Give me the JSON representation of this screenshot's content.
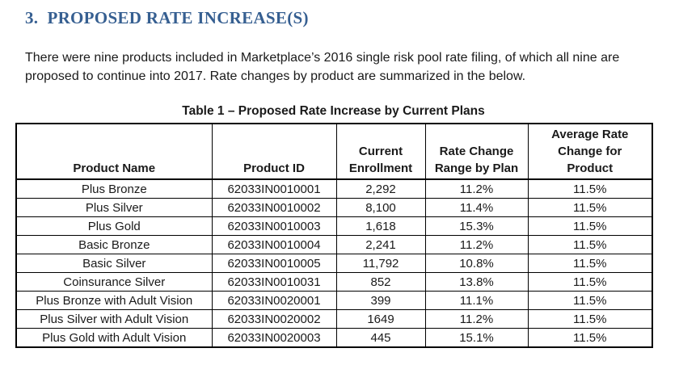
{
  "section": {
    "heading": "3.  PROPOSED RATE INCREASE(S)",
    "intro_lines": [
      "There were nine products included in Marketplace’s 2016 single risk pool rate filing, of which all nine are",
      "proposed to continue into 2017. Rate changes by product are summarized in the below."
    ]
  },
  "table": {
    "title": "Table 1 – Proposed Rate Increase by Current Plans",
    "headers": [
      "Product Name",
      "Product ID",
      "Current\nEnrollment",
      "Rate Change\nRange by Plan",
      "Average Rate\nChange for\nProduct"
    ],
    "rows": [
      [
        "Plus Bronze",
        "62033IN0010001",
        "2,292",
        "11.2%",
        "11.5%"
      ],
      [
        "Plus Silver",
        "62033IN0010002",
        "8,100",
        "11.4%",
        "11.5%"
      ],
      [
        "Plus Gold",
        "62033IN0010003",
        "1,618",
        "15.3%",
        "11.5%"
      ],
      [
        "Basic Bronze",
        "62033IN0010004",
        "2,241",
        "11.2%",
        "11.5%"
      ],
      [
        "Basic Silver",
        "62033IN0010005",
        "11,792",
        "10.8%",
        "11.5%"
      ],
      [
        "Coinsurance Silver",
        "62033IN0010031",
        "852",
        "13.8%",
        "11.5%"
      ],
      [
        "Plus Bronze with Adult Vision",
        "62033IN0020001",
        "399",
        "11.1%",
        "11.5%"
      ],
      [
        "Plus Silver with Adult Vision",
        "62033IN0020002",
        "1649",
        "11.2%",
        "11.5%"
      ],
      [
        "Plus Gold with Adult Vision",
        "62033IN0020003",
        "445",
        "15.1%",
        "11.5%"
      ]
    ]
  },
  "colors": {
    "heading_blue": "#365F91",
    "body_text": "#1a1a1a",
    "table_border": "#000000"
  }
}
